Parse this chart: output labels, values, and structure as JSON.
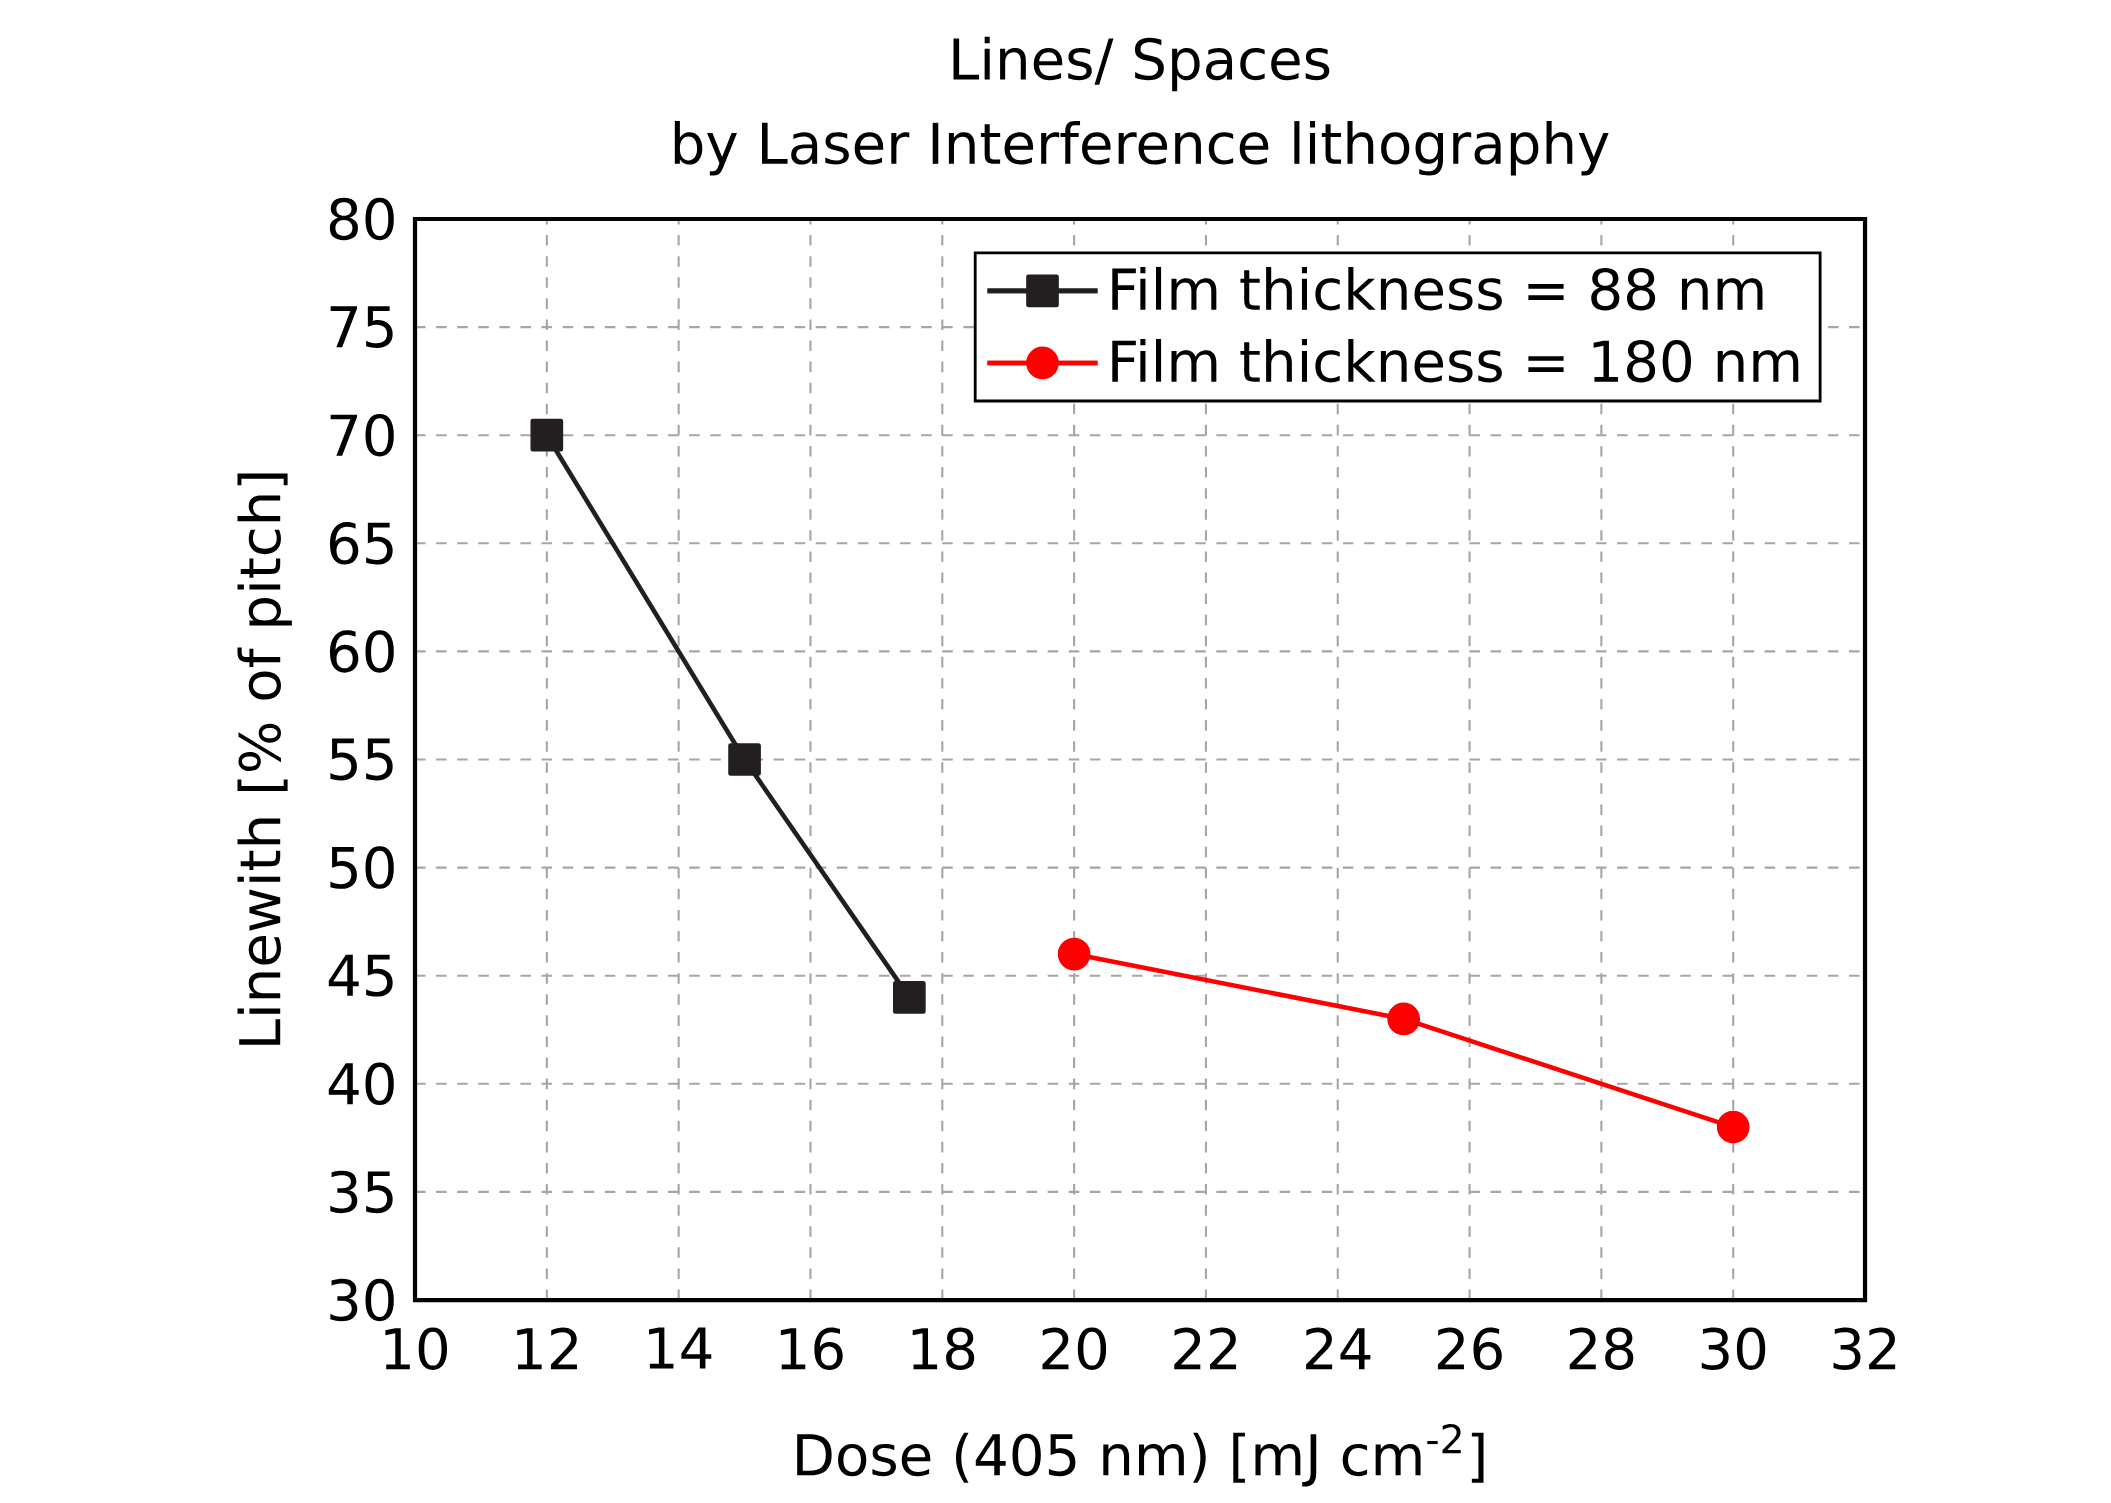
{
  "chart_data": {
    "type": "line",
    "title": "Lines/ Spaces",
    "subtitle": "by Laser Interference lithography",
    "xlabel": "Dose (405 nm) [mJ cm$^{-2}$]",
    "ylabel": "Linewith [% of pitch]",
    "xlim": [
      10,
      32
    ],
    "xticks": [
      10,
      12,
      14,
      16,
      18,
      20,
      22,
      24,
      26,
      28,
      30,
      32
    ],
    "ylim": [
      30,
      80
    ],
    "yticks": [
      30,
      35,
      40,
      45,
      50,
      55,
      60,
      65,
      70,
      75,
      80
    ],
    "grid": true,
    "legend": "top right",
    "line_style": "solid",
    "series": [
      {
        "name": "Film thickness = 88 nm",
        "color": "#231f20",
        "marker": "square",
        "x": [
          12,
          15,
          17.5
        ],
        "values": [
          70,
          55,
          44
        ]
      },
      {
        "name": "Film thickness = 180 nm",
        "color": "#ff0000",
        "marker": "circle",
        "x": [
          20,
          25,
          30
        ],
        "values": [
          46,
          43,
          38
        ]
      }
    ]
  }
}
